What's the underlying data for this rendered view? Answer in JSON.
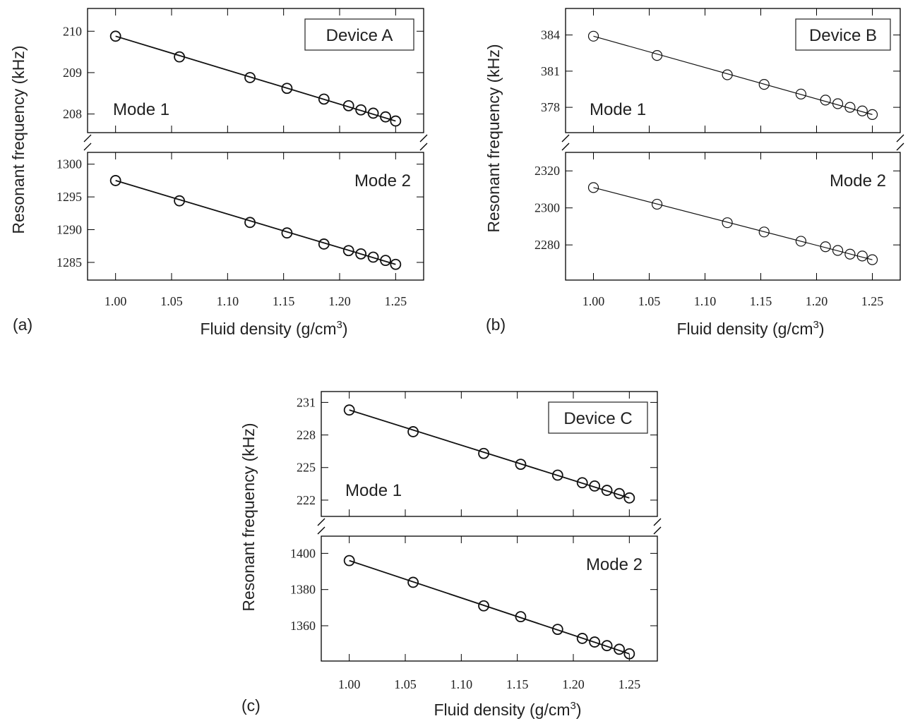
{
  "chart_data": [
    {
      "type": "scatter",
      "panel_label": "(a)",
      "device": "Device A",
      "ylabel": "Resonant frequency (kHz)",
      "xlabel": "Fluid density (g/cm³)",
      "xlabel_main": "Fluid density (g/cm",
      "xlabel_sup": "3",
      "xlabel_close": ")",
      "x_ticks": [
        "1.00",
        "1.05",
        "1.10",
        "1.15",
        "1.20",
        "1.25"
      ],
      "xlim": [
        0.975,
        1.275
      ],
      "grid": false,
      "subplots": [
        {
          "mode": "Mode 1",
          "ylim": [
            207.55,
            210.55
          ],
          "y_ticks": [
            "208",
            "209",
            "210"
          ],
          "points": [
            [
              1.0,
              209.88
            ],
            [
              1.057,
              209.38
            ],
            [
              1.12,
              208.88
            ],
            [
              1.153,
              208.62
            ],
            [
              1.186,
              208.36
            ],
            [
              1.208,
              208.2
            ],
            [
              1.219,
              208.1
            ],
            [
              1.23,
              208.02
            ],
            [
              1.241,
              207.93
            ],
            [
              1.25,
              207.83
            ]
          ],
          "fit": [
            [
              1.0,
              209.88
            ],
            [
              1.25,
              207.83
            ]
          ]
        },
        {
          "mode": "Mode 2",
          "ylim": [
            1282.3,
            1301.8
          ],
          "y_ticks": [
            "1285",
            "1290",
            "1295",
            "1300"
          ],
          "points": [
            [
              1.0,
              1297.5
            ],
            [
              1.057,
              1294.4
            ],
            [
              1.12,
              1291.1
            ],
            [
              1.153,
              1289.5
            ],
            [
              1.186,
              1287.8
            ],
            [
              1.208,
              1286.8
            ],
            [
              1.219,
              1286.3
            ],
            [
              1.23,
              1285.8
            ],
            [
              1.241,
              1285.3
            ],
            [
              1.25,
              1284.7
            ]
          ],
          "fit": [
            [
              1.0,
              1297.5
            ],
            [
              1.25,
              1284.7
            ]
          ]
        }
      ]
    },
    {
      "type": "scatter",
      "panel_label": "(b)",
      "device": "Device B",
      "ylabel": "Resonant  frequency  (kHz)",
      "xlabel": "Fluid density (g/cm³)",
      "xlabel_main": "Fluid density (g/cm",
      "xlabel_sup": "3",
      "xlabel_close": ")",
      "x_ticks": [
        "1.00",
        "1.05",
        "1.10",
        "1.15",
        "1.20",
        "1.25"
      ],
      "xlim": [
        0.975,
        1.275
      ],
      "grid": false,
      "subplots": [
        {
          "mode": "Mode 1",
          "ylim": [
            375.9,
            386.2
          ],
          "y_ticks": [
            "378",
            "381",
            "384"
          ],
          "points": [
            [
              1.0,
              383.9
            ],
            [
              1.057,
              382.3
            ],
            [
              1.12,
              380.7
            ],
            [
              1.153,
              379.9
            ],
            [
              1.186,
              379.1
            ],
            [
              1.208,
              378.6
            ],
            [
              1.219,
              378.3
            ],
            [
              1.23,
              378.0
            ],
            [
              1.241,
              377.7
            ],
            [
              1.25,
              377.4
            ]
          ],
          "fit": [
            [
              1.0,
              383.9
            ],
            [
              1.25,
              377.4
            ]
          ]
        },
        {
          "mode": "Mode 2",
          "ylim": [
            2261,
            2330
          ],
          "y_ticks": [
            "2280",
            "2300",
            "2320"
          ],
          "points": [
            [
              1.0,
              2311
            ],
            [
              1.057,
              2302
            ],
            [
              1.12,
              2292
            ],
            [
              1.153,
              2287
            ],
            [
              1.186,
              2282
            ],
            [
              1.208,
              2279
            ],
            [
              1.219,
              2277
            ],
            [
              1.23,
              2275
            ],
            [
              1.241,
              2274
            ],
            [
              1.25,
              2272
            ]
          ],
          "fit": [
            [
              1.0,
              2311
            ],
            [
              1.25,
              2272
            ]
          ]
        }
      ]
    },
    {
      "type": "scatter",
      "panel_label": "(c)",
      "device": "Device C",
      "ylabel": "Resonant frequency (kHz)",
      "xlabel": "Fluid density (g/cm³)",
      "xlabel_main": "Fluid density (g/cm",
      "xlabel_sup": "3",
      "xlabel_close": ")",
      "x_ticks": [
        "1.00",
        "1.05",
        "1.10",
        "1.15",
        "1.20",
        "1.25"
      ],
      "xlim": [
        0.975,
        1.275
      ],
      "grid": false,
      "subplots": [
        {
          "mode": "Mode 1",
          "ylim": [
            220.5,
            232.0
          ],
          "y_ticks": [
            "222",
            "225",
            "228",
            "231"
          ],
          "points": [
            [
              1.0,
              230.3
            ],
            [
              1.057,
              228.3
            ],
            [
              1.12,
              226.3
            ],
            [
              1.153,
              225.3
            ],
            [
              1.186,
              224.3
            ],
            [
              1.208,
              223.6
            ],
            [
              1.219,
              223.3
            ],
            [
              1.23,
              222.9
            ],
            [
              1.241,
              222.6
            ],
            [
              1.25,
              222.2
            ]
          ],
          "fit": [
            [
              1.0,
              230.3
            ],
            [
              1.25,
              222.2
            ]
          ]
        },
        {
          "mode": "Mode 2",
          "ylim": [
            1340.5,
            1409.5
          ],
          "y_ticks": [
            "1360",
            "1380",
            "1400"
          ],
          "points": [
            [
              1.0,
              1396
            ],
            [
              1.057,
              1384
            ],
            [
              1.12,
              1371
            ],
            [
              1.153,
              1365
            ],
            [
              1.186,
              1358
            ],
            [
              1.208,
              1353
            ],
            [
              1.219,
              1351
            ],
            [
              1.23,
              1349
            ],
            [
              1.241,
              1347
            ],
            [
              1.25,
              1344.5
            ]
          ],
          "fit": [
            [
              1.0,
              1396
            ],
            [
              1.25,
              1344.5
            ]
          ]
        }
      ]
    }
  ]
}
